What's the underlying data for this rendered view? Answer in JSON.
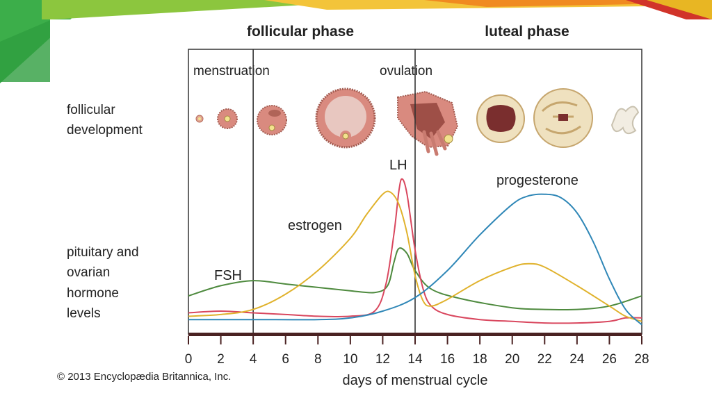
{
  "header": {
    "phase_left": "follicular phase",
    "phase_right": "luteal phase"
  },
  "events": {
    "menstruation": "menstruation",
    "ovulation": "ovulation"
  },
  "row_labels": {
    "follicular": [
      "follicular",
      "development"
    ],
    "hormones": [
      "pituitary and",
      "ovarian",
      "hormone",
      "levels"
    ]
  },
  "chart_data": {
    "type": "line",
    "xlabel": "days of menstrual cycle",
    "xlim": [
      0,
      28
    ],
    "x_ticks": [
      "0",
      "2",
      "4",
      "6",
      "8",
      "10",
      "12",
      "14",
      "16",
      "18",
      "20",
      "22",
      "24",
      "26",
      "28"
    ],
    "y_ticks": [],
    "markers": [
      {
        "label": "menstruation",
        "x": 4
      },
      {
        "label": "ovulation",
        "x": 14
      }
    ],
    "series": [
      {
        "name": "FSH",
        "color": "#4e8a3e",
        "points": [
          [
            0,
            0.18
          ],
          [
            2,
            0.24
          ],
          [
            4,
            0.27
          ],
          [
            6,
            0.25
          ],
          [
            8,
            0.23
          ],
          [
            10,
            0.21
          ],
          [
            11.5,
            0.2
          ],
          [
            12.3,
            0.24
          ],
          [
            12.7,
            0.38
          ],
          [
            13,
            0.46
          ],
          [
            13.5,
            0.43
          ],
          [
            14,
            0.33
          ],
          [
            15,
            0.22
          ],
          [
            17,
            0.16
          ],
          [
            20,
            0.11
          ],
          [
            22,
            0.1
          ],
          [
            24,
            0.1
          ],
          [
            26,
            0.12
          ],
          [
            28,
            0.18
          ]
        ]
      },
      {
        "name": "LH",
        "color": "#d9475e",
        "points": [
          [
            0,
            0.08
          ],
          [
            2,
            0.09
          ],
          [
            4,
            0.08
          ],
          [
            6,
            0.07
          ],
          [
            8,
            0.06
          ],
          [
            10,
            0.06
          ],
          [
            11.5,
            0.09
          ],
          [
            12.2,
            0.25
          ],
          [
            12.7,
            0.55
          ],
          [
            13,
            0.8
          ],
          [
            13.2,
            0.87
          ],
          [
            13.5,
            0.78
          ],
          [
            14,
            0.45
          ],
          [
            14.5,
            0.22
          ],
          [
            15,
            0.12
          ],
          [
            16,
            0.07
          ],
          [
            18,
            0.04
          ],
          [
            20,
            0.03
          ],
          [
            22,
            0.02
          ],
          [
            24,
            0.02
          ],
          [
            26,
            0.03
          ],
          [
            27,
            0.05
          ],
          [
            28,
            0.05
          ]
        ]
      },
      {
        "name": "estrogen",
        "color": "#e0b22c",
        "points": [
          [
            0,
            0.06
          ],
          [
            2,
            0.07
          ],
          [
            4,
            0.1
          ],
          [
            6,
            0.19
          ],
          [
            8,
            0.33
          ],
          [
            10,
            0.52
          ],
          [
            11,
            0.66
          ],
          [
            12,
            0.78
          ],
          [
            12.5,
            0.79
          ],
          [
            13,
            0.72
          ],
          [
            13.5,
            0.55
          ],
          [
            14,
            0.3
          ],
          [
            14.5,
            0.15
          ],
          [
            15,
            0.12
          ],
          [
            16,
            0.16
          ],
          [
            18,
            0.27
          ],
          [
            20,
            0.35
          ],
          [
            21,
            0.37
          ],
          [
            22,
            0.35
          ],
          [
            24,
            0.24
          ],
          [
            26,
            0.12
          ],
          [
            27,
            0.06
          ],
          [
            28,
            0.03
          ]
        ]
      },
      {
        "name": "progesterone",
        "color": "#2f87b7",
        "points": [
          [
            0,
            0.04
          ],
          [
            4,
            0.04
          ],
          [
            8,
            0.04
          ],
          [
            10,
            0.05
          ],
          [
            12,
            0.09
          ],
          [
            14,
            0.17
          ],
          [
            16,
            0.33
          ],
          [
            18,
            0.54
          ],
          [
            20,
            0.72
          ],
          [
            21,
            0.77
          ],
          [
            22,
            0.78
          ],
          [
            23,
            0.76
          ],
          [
            24,
            0.67
          ],
          [
            25,
            0.5
          ],
          [
            26,
            0.28
          ],
          [
            27,
            0.1
          ],
          [
            28,
            0.01
          ]
        ]
      }
    ]
  },
  "illustration": {
    "follicle_stages": [
      "primordial follicle",
      "primary follicle",
      "secondary follicle",
      "antral follicle",
      "ovulating follicle",
      "corpus luteum",
      "mature corpus luteum",
      "corpus albicans"
    ]
  },
  "credit": "© 2013 Encyclopædia Britannica, Inc."
}
